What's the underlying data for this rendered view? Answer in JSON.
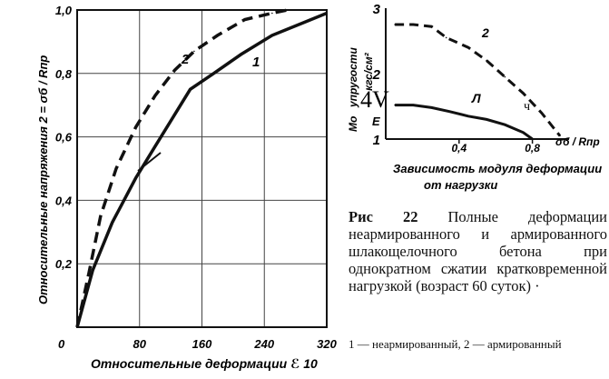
{
  "chart_data": [
    {
      "type": "line",
      "title": "",
      "xlabel": "Относительные деформации  ℰ 10",
      "ylabel": "Относительные напряжения  2 = σб / Rпр",
      "xlim": [
        0,
        320
      ],
      "ylim": [
        0,
        1.0
      ],
      "x_ticks": [
        "0",
        "80",
        "160",
        "240",
        "320"
      ],
      "y_ticks": [
        "0,2",
        "0,4",
        "0,6",
        "0,8",
        "1,0"
      ],
      "x_tick_values": [
        80,
        160,
        240,
        320
      ],
      "y_tick_values": [
        0.2,
        0.4,
        0.6,
        0.8,
        1.0
      ],
      "grid": true,
      "series": [
        {
          "name": "1",
          "style": "solid",
          "x": [
            0,
            20,
            45,
            75,
            100,
            125,
            145,
            175,
            210,
            250,
            290,
            320
          ],
          "y": [
            0,
            0.18,
            0.33,
            0.47,
            0.57,
            0.67,
            0.75,
            0.8,
            0.86,
            0.92,
            0.96,
            0.99
          ]
        },
        {
          "name": "2",
          "style": "dashed",
          "x": [
            0,
            15,
            30,
            50,
            75,
            100,
            125,
            150,
            180,
            215,
            250,
            270
          ],
          "y": [
            0,
            0.17,
            0.35,
            0.5,
            0.63,
            0.73,
            0.81,
            0.87,
            0.92,
            0.97,
            0.99,
            1.0
          ]
        }
      ],
      "annotations": [
        "1",
        "2"
      ]
    },
    {
      "type": "line",
      "title": "",
      "xlabel": "σб / Rпр",
      "ylabel_lines": [
        "Мо",
        "упругости",
        "кгс/см²"
      ],
      "ylabel_symbol": "4V",
      "ylabel_sub": "E",
      "xlim": [
        0,
        1.0
      ],
      "ylim": [
        1,
        3
      ],
      "x_ticks": [
        "0,4",
        "0,8"
      ],
      "x_tick_values": [
        0.4,
        0.8
      ],
      "y_ticks": [
        "1",
        "2",
        "3"
      ],
      "y_tick_values": [
        1,
        2,
        3
      ],
      "grid": false,
      "subcaption_lines": [
        "Зависимость модуля деформации",
        "от нагрузки"
      ],
      "series": [
        {
          "name": "2",
          "style": "dashed",
          "x": [
            0.05,
            0.15,
            0.25,
            0.33,
            0.45,
            0.55,
            0.65,
            0.75,
            0.85,
            0.95
          ],
          "y": [
            2.75,
            2.75,
            2.72,
            2.55,
            2.4,
            2.2,
            1.95,
            1.7,
            1.4,
            1.05
          ]
        },
        {
          "name": "Л",
          "style": "solid",
          "x": [
            0.05,
            0.15,
            0.25,
            0.35,
            0.45,
            0.55,
            0.65,
            0.75,
            0.8
          ],
          "y": [
            1.52,
            1.52,
            1.48,
            1.42,
            1.35,
            1.3,
            1.22,
            1.1,
            1.0
          ]
        }
      ],
      "annotations": [
        "2",
        "Л",
        "ч"
      ]
    }
  ],
  "caption": {
    "lead": "Рис 22",
    "text": " Полные деформации неармированного и армированного шлакощелочного бетона при однократном сжатии кратковременной нагрузкой (возраст 60 суток) ·"
  },
  "legend_text": "1 — неармированный,  2 — армированный"
}
